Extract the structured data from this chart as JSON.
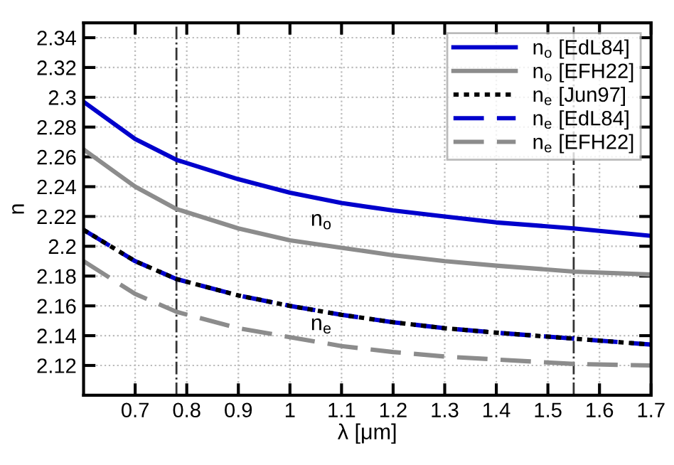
{
  "chart_data": {
    "type": "line",
    "xlabel": "λ [μm]",
    "ylabel": "n",
    "x": [
      0.6,
      0.7,
      0.78,
      0.9,
      1.0,
      1.1,
      1.2,
      1.3,
      1.4,
      1.55,
      1.7
    ],
    "series": [
      {
        "name": "n$_{o}$ [EdL84]",
        "color": "#0000cc",
        "line_style": "solid",
        "values": [
          2.297,
          2.272,
          2.258,
          2.245,
          2.236,
          2.229,
          2.224,
          2.22,
          2.216,
          2.212,
          2.207
        ]
      },
      {
        "name": "n$_{o}$ [EFH22]",
        "color": "#8c8c8c",
        "line_style": "solid",
        "values": [
          2.265,
          2.24,
          2.225,
          2.212,
          2.204,
          2.199,
          2.194,
          2.19,
          2.187,
          2.183,
          2.181
        ]
      },
      {
        "name": "n$_{e}$ [Jun97]",
        "color": "#000000",
        "line_style": "dotted",
        "values": [
          2.211,
          2.19,
          2.178,
          2.167,
          2.16,
          2.154,
          2.149,
          2.145,
          2.142,
          2.138,
          2.134
        ]
      },
      {
        "name": "n$_{e}$ [EdL84]",
        "color": "#0000cc",
        "line_style": "dashed",
        "values": [
          2.211,
          2.19,
          2.178,
          2.167,
          2.16,
          2.154,
          2.149,
          2.145,
          2.142,
          2.138,
          2.134
        ]
      },
      {
        "name": "n$_{e}$ [EFH22]",
        "color": "#8c8c8c",
        "line_style": "dashed",
        "values": [
          2.19,
          2.168,
          2.156,
          2.145,
          2.139,
          2.133,
          2.129,
          2.126,
          2.124,
          2.121,
          2.12
        ]
      }
    ],
    "xlim": [
      0.6,
      1.7
    ],
    "xticks": [
      0.7,
      0.8,
      0.9,
      1,
      1.1,
      1.2,
      1.3,
      1.4,
      1.5,
      1.6,
      1.7
    ],
    "ylim": [
      2.1,
      2.35
    ],
    "yticks": [
      2.12,
      2.14,
      2.16,
      2.18,
      2.2,
      2.22,
      2.24,
      2.26,
      2.28,
      2.3,
      2.32,
      2.34
    ],
    "ref_lines": [
      {
        "axis": "x",
        "value": 0.78,
        "color": "#333333",
        "line_style": "dashdot"
      },
      {
        "axis": "x",
        "value": 1.55,
        "color": "#333333",
        "line_style": "dashdot"
      }
    ],
    "annotations": [
      "n$_{o}$",
      "n$_{e}$"
    ],
    "grid": true,
    "legend": "top right"
  }
}
